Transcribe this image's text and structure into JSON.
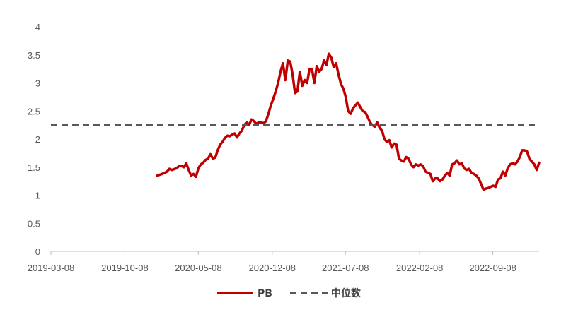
{
  "chart_data": {
    "type": "line",
    "title": "",
    "xlabel": "",
    "ylabel": "",
    "ylim": [
      0,
      4
    ],
    "xlim": [
      "2019-03-08",
      "2023-01-20"
    ],
    "y_ticks": [
      "0",
      "0.5",
      "1",
      "1.5",
      "2",
      "2.5",
      "3",
      "3.5",
      "4"
    ],
    "x_ticks": [
      "2019-03-08",
      "2019-10-08",
      "2020-05-08",
      "2020-12-08",
      "2021-07-08",
      "2022-02-08",
      "2022-09-08"
    ],
    "grid": false,
    "legend_position": "bottom",
    "series": [
      {
        "name": "PB",
        "color": "#C00000",
        "style": "solid",
        "points": [
          [
            "2020-01-10",
            1.35
          ],
          [
            "2020-01-24",
            1.38
          ],
          [
            "2020-02-07",
            1.42
          ],
          [
            "2020-02-14",
            1.47
          ],
          [
            "2020-02-21",
            1.45
          ],
          [
            "2020-03-06",
            1.48
          ],
          [
            "2020-03-13",
            1.52
          ],
          [
            "2020-03-20",
            1.52
          ],
          [
            "2020-03-27",
            1.5
          ],
          [
            "2020-04-03",
            1.57
          ],
          [
            "2020-04-10",
            1.45
          ],
          [
            "2020-04-17",
            1.35
          ],
          [
            "2020-04-24",
            1.38
          ],
          [
            "2020-05-01",
            1.33
          ],
          [
            "2020-05-08",
            1.48
          ],
          [
            "2020-05-15",
            1.55
          ],
          [
            "2020-05-22",
            1.58
          ],
          [
            "2020-05-29",
            1.63
          ],
          [
            "2020-06-05",
            1.65
          ],
          [
            "2020-06-12",
            1.73
          ],
          [
            "2020-06-19",
            1.65
          ],
          [
            "2020-06-26",
            1.67
          ],
          [
            "2020-07-03",
            1.8
          ],
          [
            "2020-07-10",
            1.9
          ],
          [
            "2020-07-17",
            1.95
          ],
          [
            "2020-07-24",
            2.02
          ],
          [
            "2020-07-31",
            2.06
          ],
          [
            "2020-08-07",
            2.05
          ],
          [
            "2020-08-14",
            2.08
          ],
          [
            "2020-08-21",
            2.1
          ],
          [
            "2020-08-28",
            2.03
          ],
          [
            "2020-09-04",
            2.1
          ],
          [
            "2020-09-11",
            2.15
          ],
          [
            "2020-09-18",
            2.25
          ],
          [
            "2020-09-25",
            2.3
          ],
          [
            "2020-10-02",
            2.25
          ],
          [
            "2020-10-09",
            2.35
          ],
          [
            "2020-10-16",
            2.32
          ],
          [
            "2020-10-23",
            2.27
          ],
          [
            "2020-10-30",
            2.3
          ],
          [
            "2020-11-06",
            2.3
          ],
          [
            "2020-11-13",
            2.28
          ],
          [
            "2020-11-20",
            2.32
          ],
          [
            "2020-11-27",
            2.45
          ],
          [
            "2020-12-04",
            2.6
          ],
          [
            "2020-12-11",
            2.72
          ],
          [
            "2020-12-18",
            2.85
          ],
          [
            "2020-12-25",
            3.0
          ],
          [
            "2021-01-01",
            3.2
          ],
          [
            "2021-01-08",
            3.35
          ],
          [
            "2021-01-15",
            3.05
          ],
          [
            "2021-01-22",
            3.4
          ],
          [
            "2021-01-29",
            3.38
          ],
          [
            "2021-02-05",
            3.15
          ],
          [
            "2021-02-12",
            2.82
          ],
          [
            "2021-02-19",
            2.85
          ],
          [
            "2021-02-26",
            3.2
          ],
          [
            "2021-03-05",
            2.95
          ],
          [
            "2021-03-12",
            3.05
          ],
          [
            "2021-03-19",
            3.0
          ],
          [
            "2021-03-26",
            3.25
          ],
          [
            "2021-04-02",
            3.25
          ],
          [
            "2021-04-09",
            3.0
          ],
          [
            "2021-04-16",
            3.3
          ],
          [
            "2021-04-23",
            3.2
          ],
          [
            "2021-04-30",
            3.25
          ],
          [
            "2021-05-07",
            3.4
          ],
          [
            "2021-05-14",
            3.32
          ],
          [
            "2021-05-21",
            3.52
          ],
          [
            "2021-05-28",
            3.45
          ],
          [
            "2021-06-04",
            3.28
          ],
          [
            "2021-06-11",
            3.35
          ],
          [
            "2021-06-18",
            3.15
          ],
          [
            "2021-06-25",
            2.98
          ],
          [
            "2021-07-02",
            2.9
          ],
          [
            "2021-07-09",
            2.75
          ],
          [
            "2021-07-16",
            2.5
          ],
          [
            "2021-07-23",
            2.45
          ],
          [
            "2021-07-30",
            2.55
          ],
          [
            "2021-08-06",
            2.6
          ],
          [
            "2021-08-13",
            2.65
          ],
          [
            "2021-08-20",
            2.57
          ],
          [
            "2021-08-27",
            2.5
          ],
          [
            "2021-09-03",
            2.48
          ],
          [
            "2021-09-10",
            2.4
          ],
          [
            "2021-09-17",
            2.3
          ],
          [
            "2021-09-24",
            2.25
          ],
          [
            "2021-10-01",
            2.22
          ],
          [
            "2021-10-08",
            2.3
          ],
          [
            "2021-10-15",
            2.2
          ],
          [
            "2021-10-22",
            2.15
          ],
          [
            "2021-10-29",
            2.0
          ],
          [
            "2021-11-05",
            1.95
          ],
          [
            "2021-11-12",
            1.98
          ],
          [
            "2021-11-19",
            1.85
          ],
          [
            "2021-11-26",
            1.92
          ],
          [
            "2021-12-03",
            1.9
          ],
          [
            "2021-12-10",
            1.65
          ],
          [
            "2021-12-17",
            1.62
          ],
          [
            "2021-12-24",
            1.6
          ],
          [
            "2021-12-31",
            1.68
          ],
          [
            "2022-01-07",
            1.65
          ],
          [
            "2022-01-14",
            1.55
          ],
          [
            "2022-01-21",
            1.5
          ],
          [
            "2022-01-28",
            1.55
          ],
          [
            "2022-02-04",
            1.53
          ],
          [
            "2022-02-11",
            1.55
          ],
          [
            "2022-02-18",
            1.52
          ],
          [
            "2022-02-25",
            1.42
          ],
          [
            "2022-03-04",
            1.4
          ],
          [
            "2022-03-11",
            1.38
          ],
          [
            "2022-03-18",
            1.25
          ],
          [
            "2022-03-25",
            1.3
          ],
          [
            "2022-04-01",
            1.3
          ],
          [
            "2022-04-08",
            1.25
          ],
          [
            "2022-04-15",
            1.28
          ],
          [
            "2022-04-22",
            1.35
          ],
          [
            "2022-04-29",
            1.4
          ],
          [
            "2022-05-06",
            1.35
          ],
          [
            "2022-05-13",
            1.55
          ],
          [
            "2022-05-20",
            1.57
          ],
          [
            "2022-05-27",
            1.62
          ],
          [
            "2022-06-03",
            1.55
          ],
          [
            "2022-06-10",
            1.57
          ],
          [
            "2022-06-17",
            1.48
          ],
          [
            "2022-06-24",
            1.45
          ],
          [
            "2022-07-01",
            1.47
          ],
          [
            "2022-07-08",
            1.4
          ],
          [
            "2022-07-15",
            1.38
          ],
          [
            "2022-07-22",
            1.35
          ],
          [
            "2022-07-29",
            1.3
          ],
          [
            "2022-08-05",
            1.2
          ],
          [
            "2022-08-12",
            1.1
          ],
          [
            "2022-08-19",
            1.12
          ],
          [
            "2022-08-26",
            1.13
          ],
          [
            "2022-09-02",
            1.15
          ],
          [
            "2022-09-09",
            1.17
          ],
          [
            "2022-09-16",
            1.15
          ],
          [
            "2022-09-23",
            1.28
          ],
          [
            "2022-09-30",
            1.3
          ],
          [
            "2022-10-07",
            1.42
          ],
          [
            "2022-10-14",
            1.35
          ],
          [
            "2022-10-21",
            1.48
          ],
          [
            "2022-10-28",
            1.55
          ],
          [
            "2022-11-04",
            1.57
          ],
          [
            "2022-11-11",
            1.55
          ],
          [
            "2022-11-18",
            1.6
          ],
          [
            "2022-11-25",
            1.68
          ],
          [
            "2022-12-02",
            1.8
          ],
          [
            "2022-12-09",
            1.8
          ],
          [
            "2022-12-16",
            1.78
          ],
          [
            "2022-12-23",
            1.65
          ],
          [
            "2022-12-30",
            1.6
          ],
          [
            "2023-01-06",
            1.55
          ],
          [
            "2023-01-13",
            1.45
          ],
          [
            "2023-01-20",
            1.58
          ]
        ]
      },
      {
        "name": "中位数",
        "color": "#595959",
        "style": "dashed",
        "points": [
          [
            "2019-03-08",
            2.25
          ],
          [
            "2023-01-20",
            2.25
          ]
        ]
      }
    ]
  }
}
